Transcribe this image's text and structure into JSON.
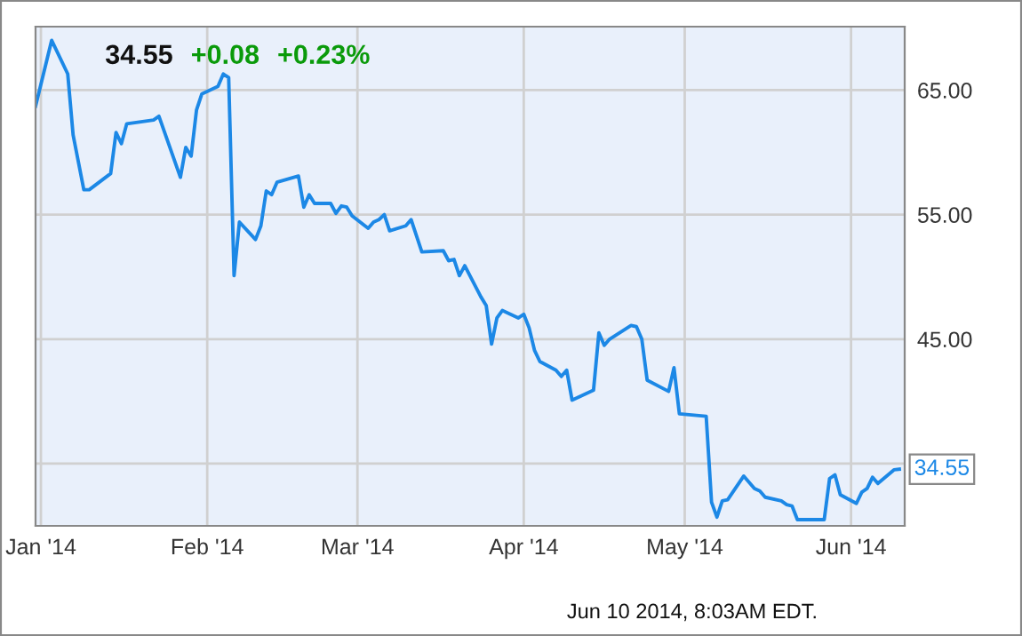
{
  "chart_data": {
    "type": "line",
    "title": "34.55",
    "annotations": [
      "+0.08",
      "+0.23%",
      {
        "text": "34.55",
        "x": "2014-06-10",
        "y": 34.55
      },
      "Jun 10 2014, 8:03AM EDT."
    ],
    "x": [
      "2013-12-31",
      "2014-01-03",
      "2014-01-06",
      "2014-01-07",
      "2014-01-09",
      "2014-01-10",
      "2014-01-14",
      "2014-01-15",
      "2014-01-16",
      "2014-01-17",
      "2014-01-22",
      "2014-01-23",
      "2014-01-27",
      "2014-01-28",
      "2014-01-29",
      "2014-01-30",
      "2014-01-31",
      "2014-02-03",
      "2014-02-04",
      "2014-02-05",
      "2014-02-06",
      "2014-02-07",
      "2014-02-10",
      "2014-02-11",
      "2014-02-12",
      "2014-02-13",
      "2014-02-14",
      "2014-02-18",
      "2014-02-19",
      "2014-02-20",
      "2014-02-21",
      "2014-02-24",
      "2014-02-25",
      "2014-02-26",
      "2014-02-27",
      "2014-02-28",
      "2014-03-03",
      "2014-03-04",
      "2014-03-05",
      "2014-03-06",
      "2014-03-07",
      "2014-03-10",
      "2014-03-11",
      "2014-03-13",
      "2014-03-17",
      "2014-03-18",
      "2014-03-19",
      "2014-03-20",
      "2014-03-21",
      "2014-03-24",
      "2014-03-25",
      "2014-03-26",
      "2014-03-27",
      "2014-03-28",
      "2014-03-31",
      "2014-04-01",
      "2014-04-02",
      "2014-04-03",
      "2014-04-04",
      "2014-04-07",
      "2014-04-08",
      "2014-04-09",
      "2014-04-10",
      "2014-04-14",
      "2014-04-15",
      "2014-04-16",
      "2014-04-17",
      "2014-04-21",
      "2014-04-22",
      "2014-04-23",
      "2014-04-24",
      "2014-04-28",
      "2014-04-29",
      "2014-04-30",
      "2014-05-05",
      "2014-05-06",
      "2014-05-07",
      "2014-05-08",
      "2014-05-09",
      "2014-05-12",
      "2014-05-14",
      "2014-05-15",
      "2014-05-16",
      "2014-05-19",
      "2014-05-20",
      "2014-05-21",
      "2014-05-22",
      "2014-05-27",
      "2014-05-28",
      "2014-05-29",
      "2014-05-30",
      "2014-06-02",
      "2014-06-03",
      "2014-06-04",
      "2014-06-05",
      "2014-06-06",
      "2014-06-09",
      "2014-06-10"
    ],
    "series": [
      {
        "color": "#1c88e6",
        "values": [
          63.7,
          69.0,
          66.3,
          61.4,
          57.0,
          57.0,
          58.3,
          61.6,
          60.7,
          62.3,
          62.6,
          62.9,
          58.0,
          60.4,
          59.7,
          63.4,
          64.7,
          65.3,
          66.3,
          66.0,
          50.1,
          54.4,
          53.0,
          54.1,
          56.9,
          56.6,
          57.6,
          58.1,
          55.6,
          56.6,
          55.9,
          55.9,
          55.1,
          55.7,
          55.6,
          54.9,
          53.9,
          54.4,
          54.6,
          55.0,
          53.7,
          54.1,
          54.6,
          52.0,
          52.1,
          51.3,
          51.4,
          50.1,
          50.9,
          48.4,
          47.7,
          44.6,
          46.7,
          47.3,
          46.7,
          47.0,
          45.9,
          44.1,
          43.2,
          42.5,
          42.0,
          42.5,
          40.1,
          40.9,
          45.5,
          44.5,
          45.0,
          46.1,
          46.0,
          45.0,
          41.7,
          40.8,
          42.7,
          39.0,
          38.8,
          31.9,
          30.7,
          32.0,
          32.1,
          34.0,
          33.0,
          32.8,
          32.3,
          32.0,
          31.7,
          31.6,
          30.5,
          30.5,
          33.8,
          34.1,
          32.5,
          31.8,
          32.7,
          33.0,
          33.9,
          33.4,
          34.5,
          34.55
        ]
      }
    ],
    "xlim": [
      "2013-12-31",
      "2014-06-11"
    ],
    "xticks": [
      {
        "value": "2014-01-01",
        "label": "Jan '14"
      },
      {
        "value": "2014-02-01",
        "label": "Feb '14"
      },
      {
        "value": "2014-03-01",
        "label": "Mar '14"
      },
      {
        "value": "2014-04-01",
        "label": "Apr '14"
      },
      {
        "value": "2014-05-01",
        "label": "May '14"
      },
      {
        "value": "2014-06-01",
        "label": "Jun '14"
      }
    ],
    "ylim": [
      30,
      70.1
    ],
    "yticks": [
      {
        "value": 35,
        "label": null
      },
      {
        "value": 45,
        "label": "45.00"
      },
      {
        "value": 55,
        "label": "55.00"
      },
      {
        "value": 65,
        "label": "65.00"
      }
    ],
    "grid": true,
    "marker": "none",
    "line_style": "solid"
  }
}
